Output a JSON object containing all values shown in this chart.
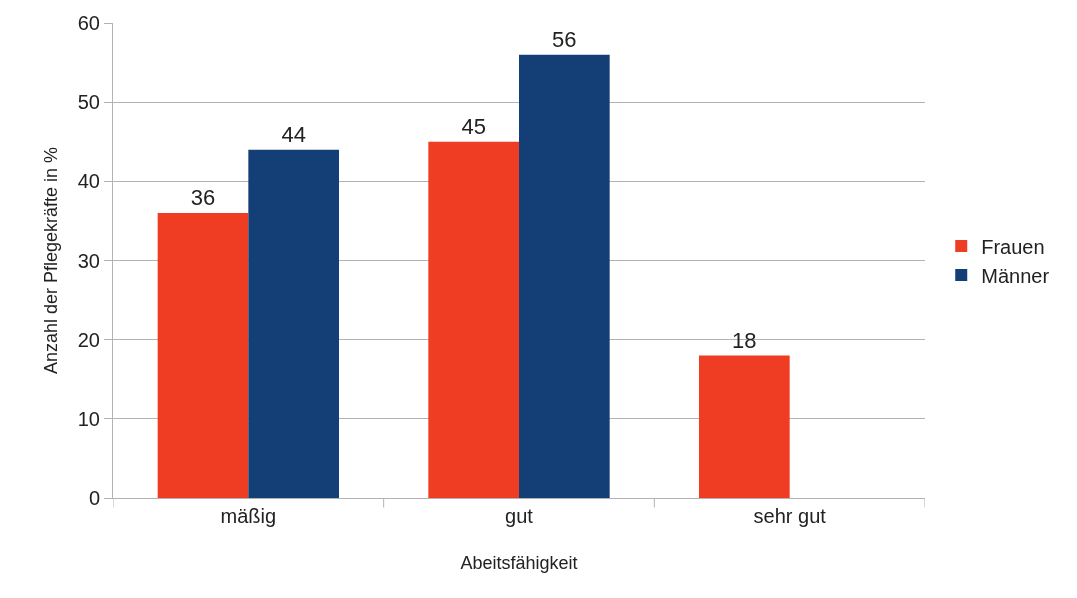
{
  "chart_data": {
    "type": "bar",
    "xlabel": "Abeitsfähigkeit",
    "ylabel": "Anzahl der Pflegekräfte in %",
    "categories": [
      "mäßig",
      "gut",
      "sehr gut"
    ],
    "series": [
      {
        "name": "Frauen",
        "color": "#ee3d23",
        "values": [
          36,
          45,
          18
        ]
      },
      {
        "name": "Männer",
        "color": "#143f76",
        "values": [
          44,
          56,
          null
        ]
      }
    ],
    "ylim": [
      0,
      60
    ],
    "yticks": [
      0,
      10,
      20,
      30,
      40,
      50,
      60
    ],
    "grid": "y",
    "legend": "right",
    "data_labels": true
  }
}
